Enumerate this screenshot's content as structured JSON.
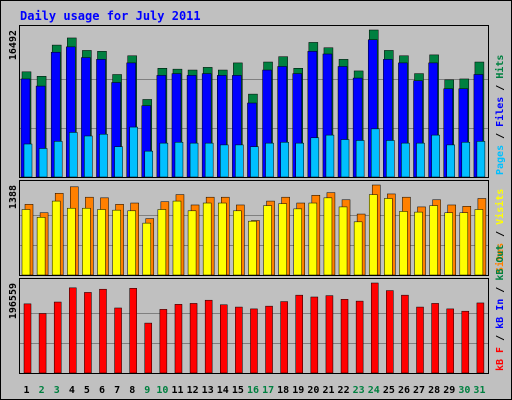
{
  "title": "Daily usage for July 2011",
  "colors": {
    "background": "#c0c0c0",
    "border": "#000000",
    "title": "#0000ff",
    "hits": "#008040",
    "files": "#0000ff",
    "pages": "#00c0ff",
    "visits": "#ffff00",
    "sites": "#ff8000",
    "kb_out": "#008040",
    "kb_in": "#0000ff",
    "kb_f": "#ff0000",
    "weekday_label": "#000000",
    "weekend_label": "#008040"
  },
  "chart_data": [
    {
      "type": "bar",
      "panel": "hits-files-pages",
      "max_label": "16492",
      "ylim": [
        0,
        16492
      ],
      "legend_position": "right",
      "legend": [
        "Pages",
        "/",
        "Files",
        "/",
        "Hits"
      ],
      "categories": [
        "1",
        "2",
        "3",
        "4",
        "5",
        "6",
        "7",
        "8",
        "9",
        "10",
        "11",
        "12",
        "13",
        "14",
        "15",
        "16",
        "17",
        "18",
        "19",
        "20",
        "21",
        "22",
        "23",
        "24",
        "25",
        "26",
        "27",
        "28",
        "29",
        "30",
        "31"
      ],
      "series": [
        {
          "name": "Hits",
          "values": [
            11800,
            11300,
            14800,
            15600,
            14200,
            14100,
            11500,
            13600,
            8700,
            12200,
            12100,
            12000,
            12300,
            12000,
            12800,
            9300,
            12900,
            13500,
            12200,
            15100,
            14500,
            13200,
            11900,
            16492,
            14200,
            13600,
            11600,
            13700,
            10900,
            11000,
            12900
          ]
        },
        {
          "name": "Files",
          "values": [
            11000,
            10200,
            14000,
            14600,
            13400,
            13200,
            10600,
            12800,
            8000,
            11400,
            11600,
            11400,
            11600,
            11400,
            11400,
            8300,
            12000,
            12400,
            11600,
            14100,
            13800,
            12400,
            11100,
            15400,
            13200,
            12800,
            10800,
            12800,
            9900,
            9900,
            11500
          ]
        },
        {
          "name": "Pages",
          "values": [
            3700,
            3200,
            4000,
            5000,
            4600,
            4800,
            3400,
            5600,
            2900,
            3800,
            3900,
            3800,
            3800,
            3600,
            3600,
            3400,
            3800,
            3900,
            3800,
            4400,
            4700,
            4200,
            4100,
            5400,
            4100,
            3800,
            3800,
            4700,
            3600,
            3900,
            4000
          ]
        }
      ]
    },
    {
      "type": "bar",
      "panel": "visits-sites",
      "max_label": "1388",
      "ylim": [
        0,
        1388
      ],
      "legend_position": "right",
      "legend": [
        "Sites",
        "/",
        "Visits"
      ],
      "categories": [
        "1",
        "2",
        "3",
        "4",
        "5",
        "6",
        "7",
        "8",
        "9",
        "10",
        "11",
        "12",
        "13",
        "14",
        "15",
        "16",
        "17",
        "18",
        "19",
        "20",
        "21",
        "22",
        "23",
        "24",
        "25",
        "26",
        "27",
        "28",
        "29",
        "30",
        "31"
      ],
      "series": [
        {
          "name": "Visits",
          "values": [
            1010,
            890,
            1140,
            1030,
            1030,
            1010,
            1000,
            990,
            800,
            1010,
            1140,
            990,
            1110,
            1110,
            990,
            830,
            1070,
            1100,
            1020,
            1110,
            1190,
            1050,
            820,
            1240,
            1180,
            980,
            970,
            1070,
            960,
            960,
            1010
          ]
        },
        {
          "name": "Sites",
          "values": [
            1090,
            960,
            1260,
            1360,
            1200,
            1190,
            1090,
            1110,
            870,
            1130,
            1240,
            1080,
            1200,
            1200,
            1080,
            840,
            1140,
            1200,
            1110,
            1230,
            1270,
            1160,
            940,
            1388,
            1250,
            1200,
            1050,
            1160,
            1080,
            1060,
            1180
          ]
        }
      ]
    },
    {
      "type": "bar",
      "panel": "kbytes",
      "max_label": "196559",
      "ylim": [
        0,
        196559
      ],
      "legend_position": "right",
      "legend": [
        "kB F",
        "/",
        "kB In",
        "/",
        "kB Out"
      ],
      "categories": [
        "1",
        "2",
        "3",
        "4",
        "5",
        "6",
        "7",
        "8",
        "9",
        "10",
        "11",
        "12",
        "13",
        "14",
        "15",
        "16",
        "17",
        "18",
        "19",
        "20",
        "21",
        "22",
        "23",
        "24",
        "25",
        "26",
        "27",
        "28",
        "29",
        "30",
        "31"
      ],
      "series": [
        {
          "name": "kB F",
          "values": [
            151000,
            130000,
            155000,
            186000,
            176000,
            183000,
            142000,
            185000,
            109000,
            139000,
            150000,
            152000,
            159000,
            149000,
            144000,
            140000,
            146000,
            156000,
            170000,
            166000,
            169000,
            161000,
            157000,
            196559,
            180000,
            170000,
            144000,
            152000,
            140000,
            135000,
            153000
          ]
        }
      ]
    }
  ]
}
